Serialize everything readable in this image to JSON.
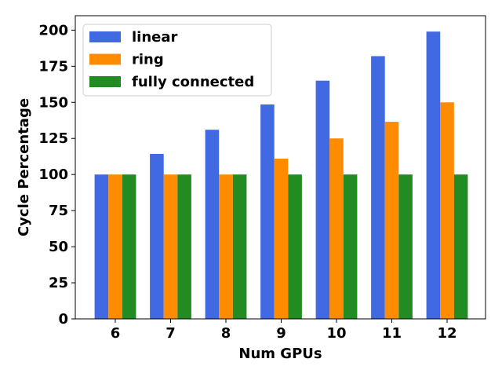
{
  "chart_data": {
    "type": "bar",
    "xlabel": "Num GPUs",
    "ylabel": "Cycle Percentage",
    "categories": [
      "6",
      "7",
      "8",
      "9",
      "10",
      "11",
      "12"
    ],
    "ylim": [
      0,
      210
    ],
    "yticks": [
      0,
      25,
      50,
      75,
      100,
      125,
      150,
      175,
      200
    ],
    "grid": false,
    "legend_position": "top-left",
    "series": [
      {
        "name": "linear",
        "color": "#4169e1",
        "values": [
          100,
          114.3,
          131,
          148.5,
          165,
          182,
          199
        ]
      },
      {
        "name": "ring",
        "color": "#ff8c00",
        "values": [
          100,
          100,
          100,
          111,
          125,
          136.5,
          150
        ]
      },
      {
        "name": "fully connected",
        "color": "#228b22",
        "values": [
          100,
          100,
          100,
          100,
          100,
          100,
          100
        ]
      }
    ]
  }
}
